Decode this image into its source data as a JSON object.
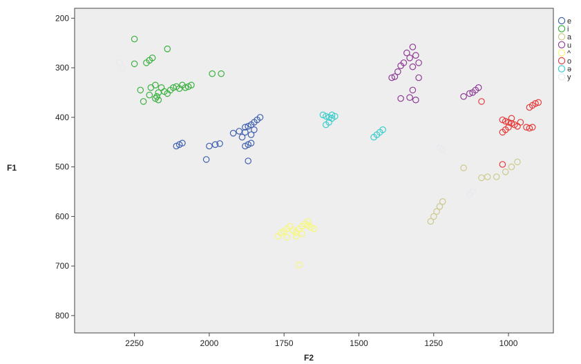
{
  "chart_data": {
    "type": "scatter",
    "title": "",
    "xlabel": "F2",
    "ylabel": "F1",
    "x_reversed": true,
    "y_reversed": true,
    "xlim": [
      2450,
      850
    ],
    "ylim": [
      180,
      835
    ],
    "x_ticks": [
      2250,
      2000,
      1750,
      1500,
      1250,
      1000
    ],
    "y_ticks": [
      200,
      300,
      400,
      500,
      600,
      700,
      800
    ],
    "grid": false,
    "legend_position": "right",
    "series": [
      {
        "name": "e",
        "color": "#3e5fb0",
        "points": [
          [
            2110,
            458
          ],
          [
            2100,
            455
          ],
          [
            2090,
            452
          ],
          [
            2010,
            485
          ],
          [
            2000,
            458
          ],
          [
            1980,
            455
          ],
          [
            1965,
            453
          ],
          [
            1920,
            432
          ],
          [
            1900,
            428
          ],
          [
            1890,
            440
          ],
          [
            1880,
            420
          ],
          [
            1870,
            418
          ],
          [
            1860,
            415
          ],
          [
            1850,
            410
          ],
          [
            1840,
            405
          ],
          [
            1830,
            400
          ],
          [
            1870,
            455
          ],
          [
            1860,
            452
          ],
          [
            1880,
            458
          ],
          [
            1870,
            488
          ],
          [
            1880,
            430
          ],
          [
            1850,
            425
          ],
          [
            1860,
            435
          ]
        ]
      },
      {
        "name": "i",
        "color": "#3bb040",
        "points": [
          [
            2250,
            242
          ],
          [
            2250,
            292
          ],
          [
            2230,
            345
          ],
          [
            2210,
            290
          ],
          [
            2200,
            285
          ],
          [
            2190,
            280
          ],
          [
            2140,
            262
          ],
          [
            2220,
            368
          ],
          [
            2200,
            355
          ],
          [
            2195,
            340
          ],
          [
            2180,
            362
          ],
          [
            2175,
            358
          ],
          [
            2170,
            350
          ],
          [
            2160,
            340
          ],
          [
            2150,
            348
          ],
          [
            2140,
            352
          ],
          [
            2130,
            345
          ],
          [
            2120,
            340
          ],
          [
            2110,
            338
          ],
          [
            2100,
            342
          ],
          [
            2090,
            335
          ],
          [
            2080,
            340
          ],
          [
            2070,
            338
          ],
          [
            2060,
            335
          ],
          [
            2180,
            335
          ],
          [
            2170,
            365
          ],
          [
            1990,
            312
          ],
          [
            1960,
            312
          ]
        ]
      },
      {
        "name": "a",
        "color": "#ccc98a",
        "points": [
          [
            1150,
            502
          ],
          [
            1090,
            522
          ],
          [
            1070,
            520
          ],
          [
            1040,
            520
          ],
          [
            1010,
            510
          ],
          [
            990,
            500
          ],
          [
            970,
            490
          ],
          [
            1240,
            590
          ],
          [
            1250,
            600
          ],
          [
            1230,
            580
          ],
          [
            1220,
            570
          ],
          [
            1260,
            610
          ]
        ]
      },
      {
        "name": "u",
        "color": "#8e3b96",
        "points": [
          [
            1320,
            258
          ],
          [
            1340,
            270
          ],
          [
            1330,
            280
          ],
          [
            1310,
            275
          ],
          [
            1350,
            290
          ],
          [
            1360,
            296
          ],
          [
            1370,
            308
          ],
          [
            1380,
            318
          ],
          [
            1320,
            298
          ],
          [
            1300,
            290
          ],
          [
            1300,
            320
          ],
          [
            1320,
            345
          ],
          [
            1330,
            360
          ],
          [
            1360,
            362
          ],
          [
            1100,
            340
          ],
          [
            1110,
            345
          ],
          [
            1120,
            350
          ],
          [
            1130,
            352
          ],
          [
            1150,
            358
          ],
          [
            1310,
            365
          ],
          [
            1390,
            320
          ]
        ]
      },
      {
        "name": "^",
        "color": "#f7f77a",
        "points": [
          [
            1770,
            640
          ],
          [
            1760,
            633
          ],
          [
            1750,
            630
          ],
          [
            1740,
            625
          ],
          [
            1730,
            620
          ],
          [
            1720,
            628
          ],
          [
            1710,
            632
          ],
          [
            1700,
            625
          ],
          [
            1690,
            620
          ],
          [
            1680,
            615
          ],
          [
            1670,
            618
          ],
          [
            1660,
            622
          ],
          [
            1650,
            625
          ],
          [
            1690,
            635
          ],
          [
            1710,
            640
          ],
          [
            1700,
            698
          ],
          [
            1740,
            642
          ],
          [
            1670,
            610
          ]
        ]
      },
      {
        "name": "o",
        "color": "#e83a3a",
        "points": [
          [
            1020,
            405
          ],
          [
            1010,
            408
          ],
          [
            1000,
            410
          ],
          [
            990,
            412
          ],
          [
            980,
            415
          ],
          [
            970,
            418
          ],
          [
            960,
            410
          ],
          [
            1000,
            420
          ],
          [
            1010,
            425
          ],
          [
            1020,
            430
          ],
          [
            940,
            420
          ],
          [
            930,
            422
          ],
          [
            920,
            420
          ],
          [
            930,
            380
          ],
          [
            920,
            376
          ],
          [
            910,
            372
          ],
          [
            900,
            370
          ],
          [
            1090,
            368
          ],
          [
            1020,
            495
          ],
          [
            990,
            402
          ]
        ]
      },
      {
        "name": "ə",
        "color": "#3ccccc",
        "points": [
          [
            1620,
            395
          ],
          [
            1610,
            398
          ],
          [
            1600,
            400
          ],
          [
            1590,
            402
          ],
          [
            1580,
            398
          ],
          [
            1600,
            410
          ],
          [
            1610,
            415
          ],
          [
            1590,
            395
          ],
          [
            1450,
            440
          ],
          [
            1440,
            435
          ],
          [
            1430,
            430
          ],
          [
            1420,
            425
          ]
        ]
      },
      {
        "name": "y",
        "color": "#e8e8f0",
        "points": [
          [
            2300,
            290
          ],
          [
            2290,
            300
          ],
          [
            1230,
            462
          ],
          [
            1220,
            465
          ],
          [
            1130,
            555
          ],
          [
            1120,
            550
          ]
        ]
      }
    ]
  }
}
